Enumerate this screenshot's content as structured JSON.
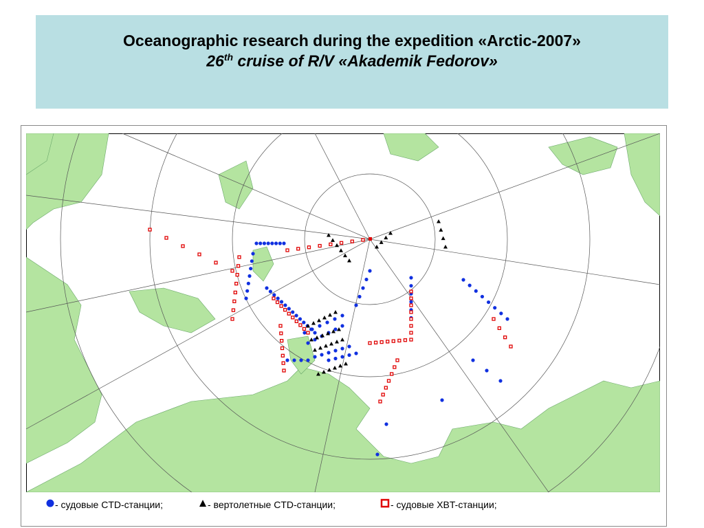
{
  "header": {
    "title": "Oceanographic research during the expedition «Arctic-2007»",
    "subtitle": {
      "number": "26",
      "suffix": "th",
      "rest": "cruise of R/V «Akademik Fedorov»"
    }
  },
  "legend": [
    {
      "label": "- судовые CTD-станции;"
    },
    {
      "label": "- вертолетные CTD-станции;"
    },
    {
      "label": "- судовые XBT-станции;"
    }
  ]
}
